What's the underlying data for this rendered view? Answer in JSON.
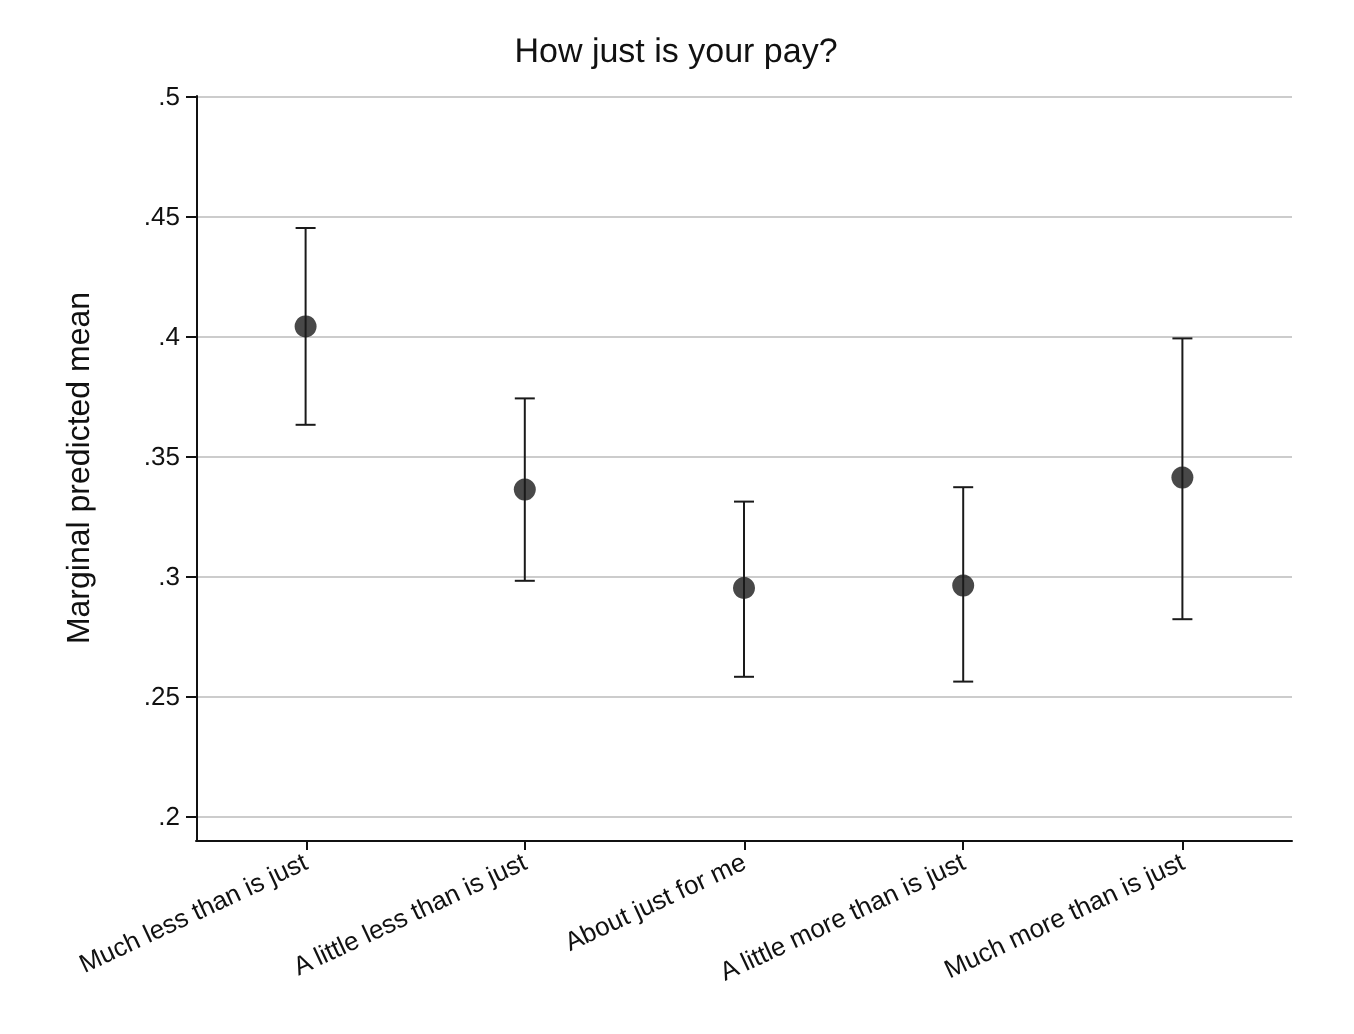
{
  "chart_data": {
    "type": "scatter",
    "title": "How just is your pay?",
    "ylabel": "Marginal predicted mean",
    "categories": [
      "Much less than is just",
      "A little less than is just",
      "About just for me",
      "A little more than is just",
      "Much more than is just"
    ],
    "values": [
      0.404,
      0.336,
      0.295,
      0.296,
      0.341
    ],
    "errors": [
      [
        0.363,
        0.445
      ],
      [
        0.298,
        0.374
      ],
      [
        0.258,
        0.331
      ],
      [
        0.256,
        0.337
      ],
      [
        0.282,
        0.399
      ]
    ],
    "color": "#1a1a1a",
    "marker": "circle",
    "grid": "y",
    "ylim": [
      0.19,
      0.5
    ],
    "yticks": [
      {
        "value": 0.2,
        "label": ".2"
      },
      {
        "value": 0.25,
        "label": ".25"
      },
      {
        "value": 0.3,
        "label": ".3"
      },
      {
        "value": 0.35,
        "label": ".35"
      },
      {
        "value": 0.4,
        "label": ".4"
      },
      {
        "value": 0.45,
        "label": ".45"
      },
      {
        "value": 0.5,
        "label": ".5"
      }
    ]
  }
}
